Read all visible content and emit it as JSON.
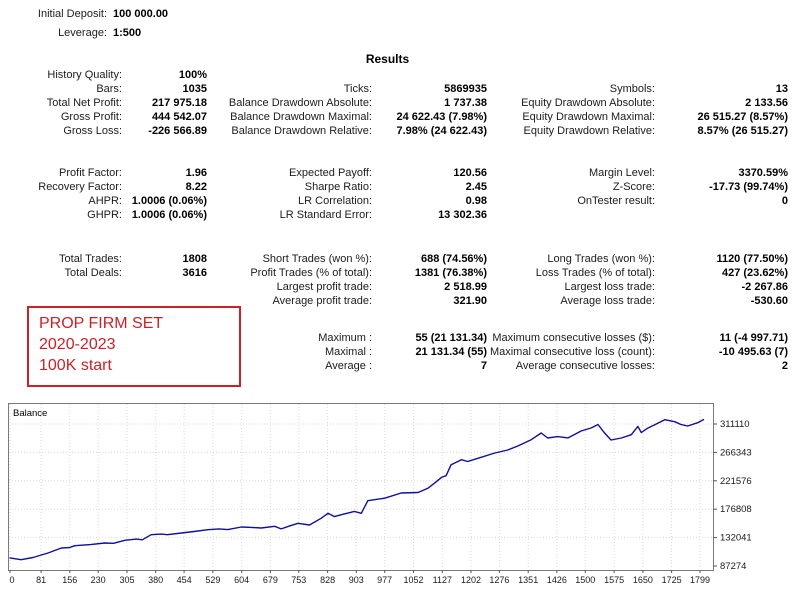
{
  "header": {
    "initial_deposit_label": "Initial Deposit:",
    "initial_deposit_value": "100 000.00",
    "leverage_label": "Leverage:",
    "leverage_value": "1:500",
    "results_title": "Results"
  },
  "annotation": {
    "lines": [
      "PROP FIRM SET",
      "2020-2023",
      "100K start"
    ],
    "color": "#cc2127"
  },
  "stats": {
    "blocks": [
      {
        "rows": [
          [
            "History Quality:",
            "100%",
            "",
            "",
            "",
            ""
          ],
          [
            "Bars:",
            "1035",
            "Ticks:",
            "5869935",
            "Symbols:",
            "13"
          ],
          [
            "Total Net Profit:",
            "217 975.18",
            "Balance Drawdown Absolute:",
            "1 737.38",
            "Equity Drawdown Absolute:",
            "2 133.56"
          ],
          [
            "Gross Profit:",
            "444 542.07",
            "Balance Drawdown Maximal:",
            "24 622.43 (7.98%)",
            "Equity Drawdown Maximal:",
            "26 515.27 (8.57%)"
          ],
          [
            "Gross Loss:",
            "-226 566.89",
            "Balance Drawdown Relative:",
            "7.98% (24 622.43)",
            "Equity Drawdown Relative:",
            "8.57% (26 515.27)"
          ]
        ]
      },
      {
        "rows": [
          [
            "Profit Factor:",
            "1.96",
            "Expected Payoff:",
            "120.56",
            "Margin Level:",
            "3370.59%"
          ],
          [
            "Recovery Factor:",
            "8.22",
            "Sharpe Ratio:",
            "2.45",
            "Z-Score:",
            "-17.73 (99.74%)"
          ],
          [
            "AHPR:",
            "1.0006 (0.06%)",
            "LR Correlation:",
            "0.98",
            "OnTester result:",
            "0"
          ],
          [
            "GHPR:",
            "1.0006 (0.06%)",
            "LR Standard Error:",
            "13 302.36",
            "",
            ""
          ]
        ]
      },
      {
        "rows": [
          [
            "Total Trades:",
            "1808",
            "Short Trades (won %):",
            "688 (74.56%)",
            "Long Trades (won %):",
            "1120 (77.50%)"
          ],
          [
            "Total Deals:",
            "3616",
            "Profit Trades (% of total):",
            "1381 (76.38%)",
            "Loss Trades (% of total):",
            "427 (23.62%)"
          ],
          [
            "",
            "",
            "Largest profit trade:",
            "2 518.99",
            "Largest loss trade:",
            "-2 267.86"
          ],
          [
            "",
            "",
            "Average profit trade:",
            "321.90",
            "Average loss trade:",
            "-530.60"
          ]
        ]
      },
      {
        "rows": [
          [
            "",
            "",
            "Maximum :",
            "55 (21 131.34)",
            "Maximum consecutive losses ($):",
            "11 (-4 997.71)"
          ],
          [
            "",
            "",
            "Maximal :",
            "21 131.34 (55)",
            "Maximal consecutive loss (count):",
            "-10 495.63 (7)"
          ],
          [
            "",
            "",
            "Average :",
            "7",
            "Average consecutive losses:",
            "2"
          ]
        ]
      }
    ]
  },
  "chart_data": {
    "type": "line",
    "title": "Balance",
    "xlabel": "",
    "ylabel": "",
    "xlim": [
      0,
      1808
    ],
    "ylim": [
      87274,
      311110
    ],
    "grid": true,
    "x_ticks": [
      0,
      81,
      156,
      230,
      305,
      380,
      454,
      529,
      604,
      679,
      753,
      828,
      903,
      977,
      1052,
      1127,
      1202,
      1276,
      1351,
      1426,
      1500,
      1575,
      1650,
      1725,
      1799
    ],
    "y_ticks": [
      87274,
      132041,
      176808,
      221576,
      266343,
      311110
    ],
    "colors": {
      "line": "#10109b",
      "grid": "#d9d9d9",
      "border": "#7a7a7a",
      "axis_text": "#1a1a1a"
    },
    "series": [
      {
        "name": "Balance",
        "points": [
          [
            0,
            100000
          ],
          [
            29,
            97200
          ],
          [
            60,
            100600
          ],
          [
            99,
            107700
          ],
          [
            134,
            115600
          ],
          [
            155,
            116200
          ],
          [
            169,
            119300
          ],
          [
            210,
            121000
          ],
          [
            247,
            123500
          ],
          [
            270,
            123000
          ],
          [
            299,
            127800
          ],
          [
            330,
            129600
          ],
          [
            345,
            128500
          ],
          [
            368,
            136600
          ],
          [
            395,
            137600
          ],
          [
            410,
            136600
          ],
          [
            447,
            139300
          ],
          [
            480,
            141600
          ],
          [
            516,
            144500
          ],
          [
            545,
            145800
          ],
          [
            568,
            144700
          ],
          [
            603,
            148700
          ],
          [
            630,
            148100
          ],
          [
            655,
            147200
          ],
          [
            690,
            149900
          ],
          [
            707,
            145700
          ],
          [
            730,
            150600
          ],
          [
            751,
            154600
          ],
          [
            781,
            151900
          ],
          [
            811,
            162400
          ],
          [
            829,
            170300
          ],
          [
            846,
            165100
          ],
          [
            864,
            168200
          ],
          [
            898,
            173400
          ],
          [
            916,
            170300
          ],
          [
            933,
            190200
          ],
          [
            977,
            194100
          ],
          [
            1020,
            202300
          ],
          [
            1064,
            203100
          ],
          [
            1090,
            210000
          ],
          [
            1107,
            218000
          ],
          [
            1125,
            227000
          ],
          [
            1137,
            229600
          ],
          [
            1150,
            247000
          ],
          [
            1177,
            254800
          ],
          [
            1193,
            252000
          ],
          [
            1220,
            257100
          ],
          [
            1264,
            265400
          ],
          [
            1298,
            270100
          ],
          [
            1324,
            276400
          ],
          [
            1359,
            286400
          ],
          [
            1385,
            296900
          ],
          [
            1402,
            289100
          ],
          [
            1428,
            291200
          ],
          [
            1455,
            289200
          ],
          [
            1489,
            300100
          ],
          [
            1515,
            304800
          ],
          [
            1533,
            310300
          ],
          [
            1550,
            297100
          ],
          [
            1567,
            285900
          ],
          [
            1594,
            289100
          ],
          [
            1620,
            294300
          ],
          [
            1637,
            307400
          ],
          [
            1646,
            297600
          ],
          [
            1663,
            304700
          ],
          [
            1689,
            312200
          ],
          [
            1707,
            317900
          ],
          [
            1733,
            314800
          ],
          [
            1750,
            310100
          ],
          [
            1767,
            307900
          ],
          [
            1793,
            313100
          ],
          [
            1808,
            317975
          ]
        ]
      }
    ]
  }
}
